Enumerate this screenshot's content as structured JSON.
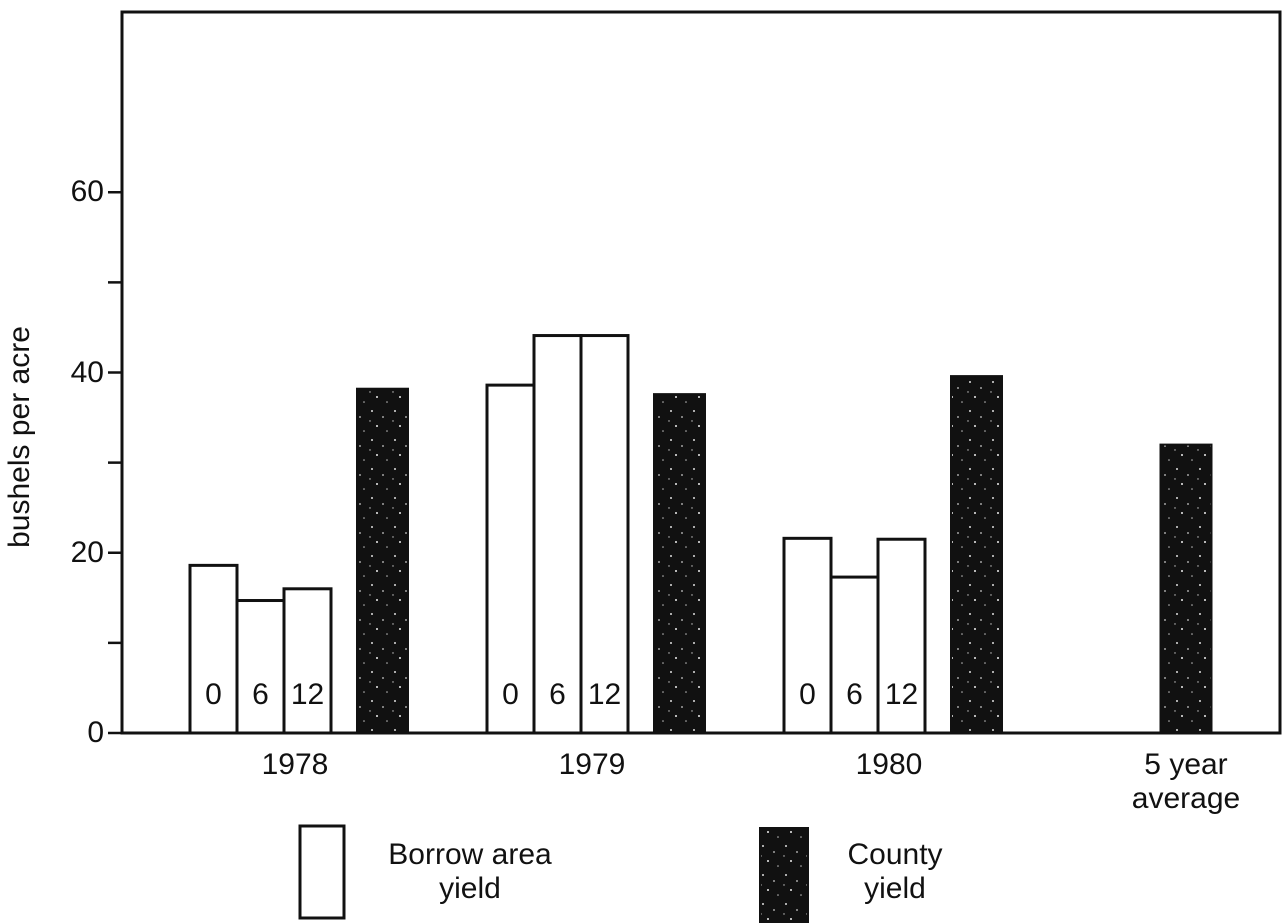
{
  "chart_data": {
    "type": "grouped-bar",
    "y_label": "bushels per acre",
    "categories": [
      "1978",
      "1979",
      "1980",
      "5 year average"
    ],
    "series": [
      {
        "name": "Borrow area yield",
        "color": "#ffffff",
        "subgroups": [
          "0",
          "6",
          "12"
        ],
        "values": [
          [
            18.6,
            14.7,
            16.0
          ],
          [
            38.6,
            44.1,
            44.1
          ],
          [
            21.6,
            17.3,
            21.5
          ],
          null
        ]
      },
      {
        "name": "County yield",
        "color": "#111111",
        "values": [
          38.2,
          37.6,
          39.6,
          32.0
        ]
      }
    ],
    "ylim": [
      0,
      80
    ],
    "yticks": [
      0,
      20,
      40,
      60
    ],
    "yminorticks": [
      10,
      30,
      50
    ]
  }
}
